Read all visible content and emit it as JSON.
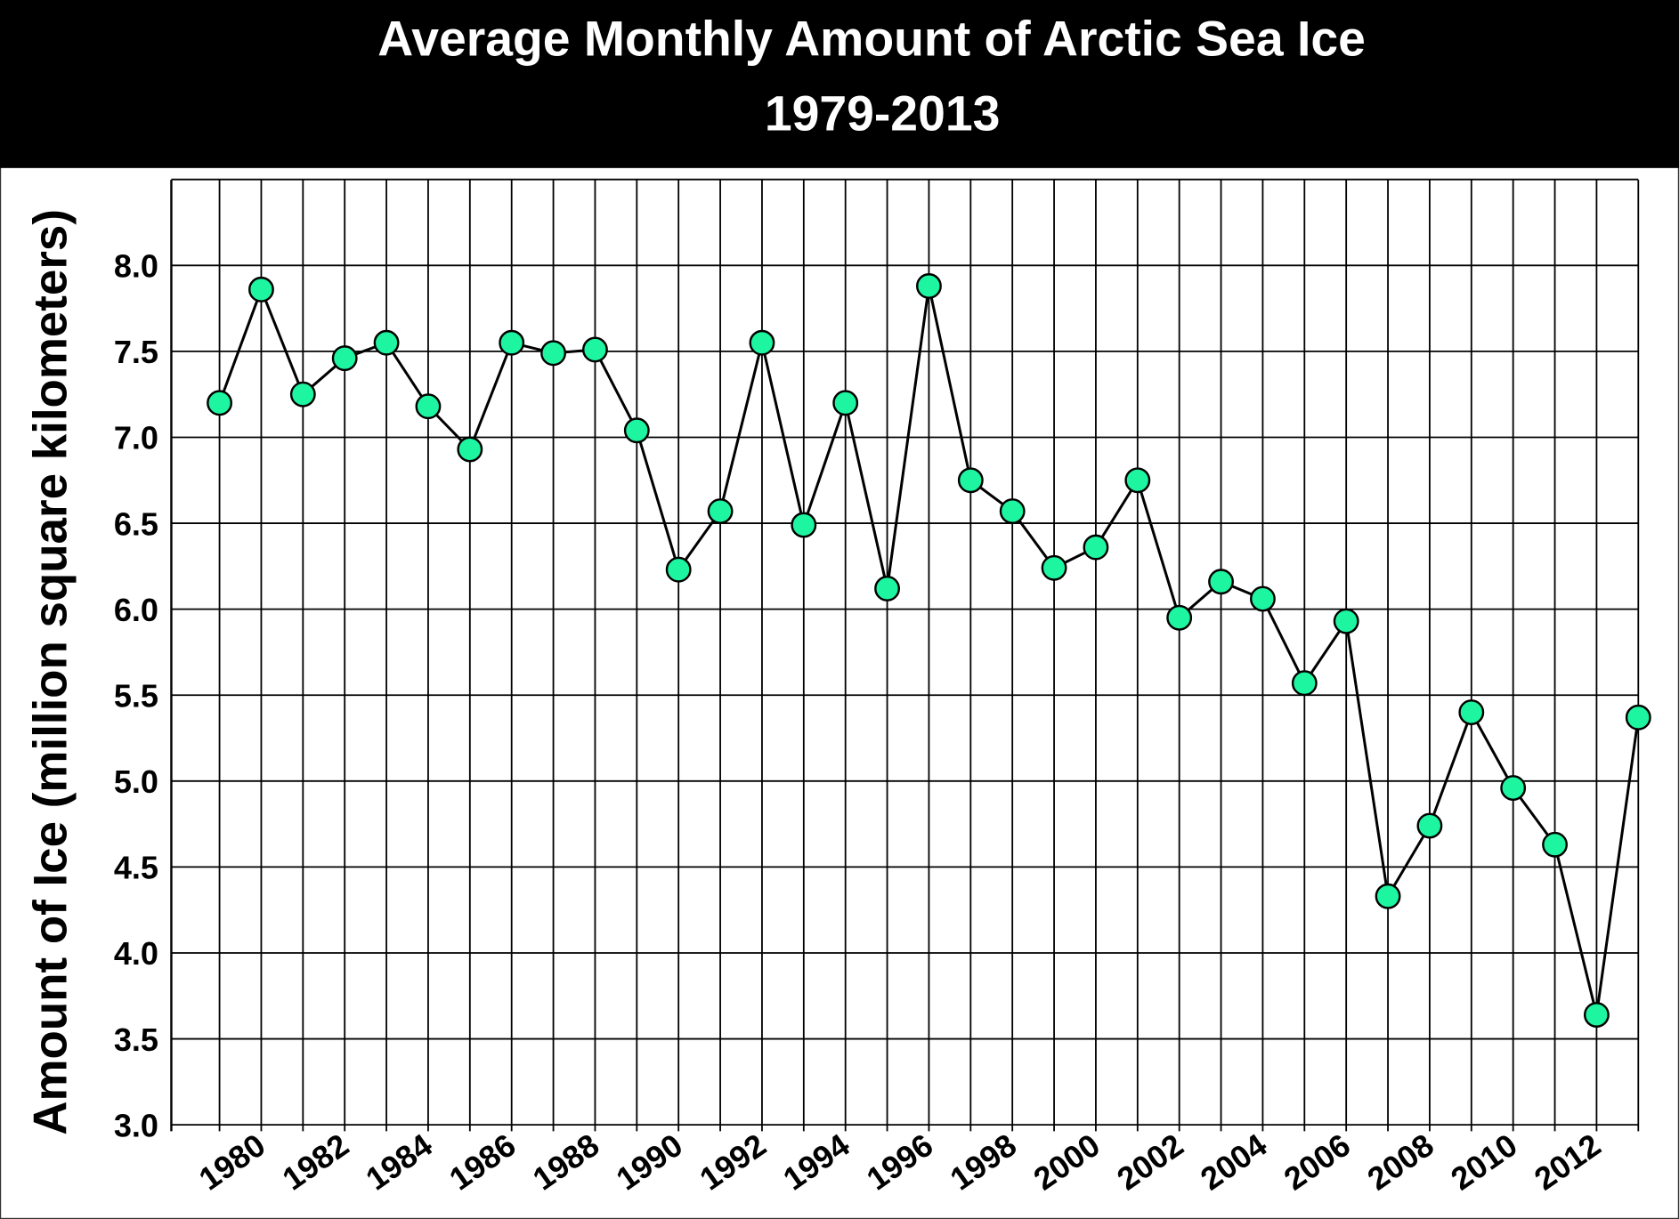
{
  "chart_data": {
    "type": "line",
    "title": "Average Monthly Amount of Arctic Sea Ice",
    "subtitle": "1979-2013",
    "xlabel": "",
    "ylabel": "Amount of Ice (million square kilometers)",
    "ylim": [
      3.0,
      8.5
    ],
    "xlim": [
      1979,
      2013
    ],
    "grid": true,
    "yticks": [
      "3.0",
      "3.5",
      "4.0",
      "4.5",
      "5.0",
      "5.5",
      "6.0",
      "6.5",
      "7.0",
      "7.5",
      "8.0"
    ],
    "xticks": [
      "1980",
      "1982",
      "1984",
      "1986",
      "1988",
      "1990",
      "1992",
      "1994",
      "1996",
      "1998",
      "2000",
      "2002",
      "2004",
      "2006",
      "2008",
      "2010",
      "2012"
    ],
    "x": [
      1979,
      1980,
      1981,
      1982,
      1983,
      1984,
      1985,
      1986,
      1987,
      1988,
      1989,
      1990,
      1991,
      1992,
      1993,
      1994,
      1995,
      1996,
      1997,
      1998,
      1999,
      2000,
      2001,
      2002,
      2003,
      2004,
      2005,
      2006,
      2007,
      2008,
      2009,
      2010,
      2011,
      2012,
      2013
    ],
    "values": [
      7.2,
      7.86,
      7.25,
      7.46,
      7.55,
      7.18,
      6.93,
      7.55,
      7.49,
      7.51,
      7.04,
      6.23,
      6.57,
      7.55,
      6.49,
      7.2,
      6.12,
      7.88,
      6.75,
      6.57,
      6.24,
      6.36,
      6.75,
      5.95,
      6.16,
      6.06,
      5.57,
      5.93,
      4.33,
      4.74,
      5.4,
      4.96,
      4.63,
      3.64,
      5.37
    ],
    "colors": {
      "marker": "#1ef5a0",
      "line": "#000000",
      "title_bg": "#000000"
    }
  }
}
